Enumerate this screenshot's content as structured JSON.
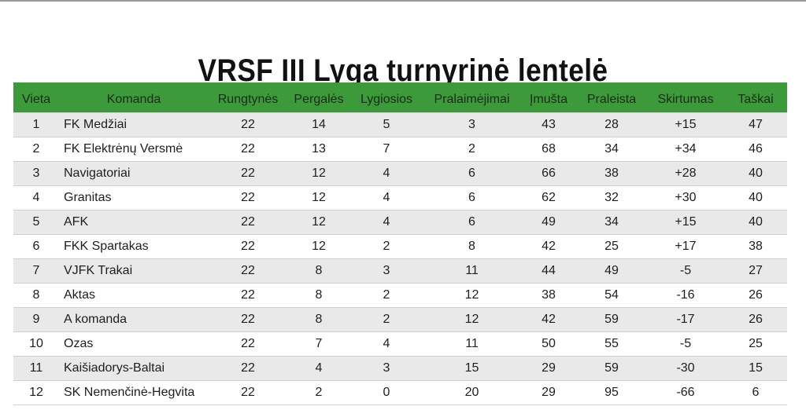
{
  "title": "VRSF III Lyga turnyrinė lentelė",
  "colors": {
    "header_bg": "#3d9a3a",
    "row_alt_bg": "#e9e9e9"
  },
  "columns": [
    "Vieta",
    "Komanda",
    "Rungtynės",
    "Pergalės",
    "Lygiosios",
    "Pralaimėjimai",
    "Įmušta",
    "Praleista",
    "Skirtumas",
    "Taškai"
  ],
  "rows": [
    [
      "1",
      "FK Medžiai",
      "22",
      "14",
      "5",
      "3",
      "43",
      "28",
      "+15",
      "47"
    ],
    [
      "2",
      "FK Elektrėnų Versmė",
      "22",
      "13",
      "7",
      "2",
      "68",
      "34",
      "+34",
      "46"
    ],
    [
      "3",
      "Navigatoriai",
      "22",
      "12",
      "4",
      "6",
      "66",
      "38",
      "+28",
      "40"
    ],
    [
      "4",
      "Granitas",
      "22",
      "12",
      "4",
      "6",
      "62",
      "32",
      "+30",
      "40"
    ],
    [
      "5",
      "AFK",
      "22",
      "12",
      "4",
      "6",
      "49",
      "34",
      "+15",
      "40"
    ],
    [
      "6",
      "FKK Spartakas",
      "22",
      "12",
      "2",
      "8",
      "42",
      "25",
      "+17",
      "38"
    ],
    [
      "7",
      "VJFK Trakai",
      "22",
      "8",
      "3",
      "11",
      "44",
      "49",
      "-5",
      "27"
    ],
    [
      "8",
      "Aktas",
      "22",
      "8",
      "2",
      "12",
      "38",
      "54",
      "-16",
      "26"
    ],
    [
      "9",
      "A komanda",
      "22",
      "8",
      "2",
      "12",
      "42",
      "59",
      "-17",
      "26"
    ],
    [
      "10",
      "Ozas",
      "22",
      "7",
      "4",
      "11",
      "50",
      "55",
      "-5",
      "25"
    ],
    [
      "11",
      "Kaišiadorys-Baltai",
      "22",
      "4",
      "3",
      "15",
      "29",
      "59",
      "-30",
      "15"
    ],
    [
      "12",
      "SK Nemenčinė-Hegvita",
      "22",
      "2",
      "0",
      "20",
      "29",
      "95",
      "-66",
      "6"
    ]
  ]
}
